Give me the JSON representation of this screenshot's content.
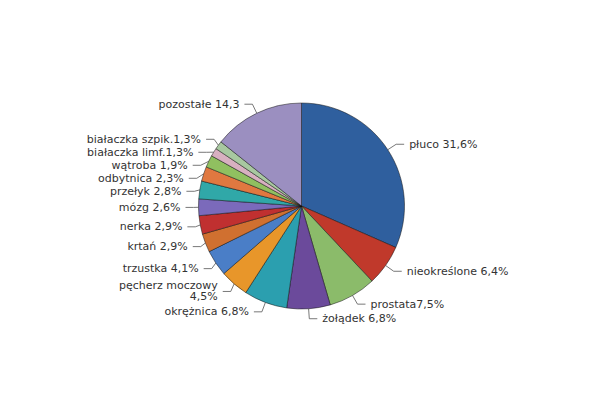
{
  "chart_data": {
    "type": "pie",
    "categories": [
      "płuco 31,6%",
      "nieokreślone 6,4%",
      "prostata7,5%",
      "żołądek 6,8%",
      "okrężnica 6,8%",
      "pęcherz moczowy\n4,5%",
      "trzustka 4,1%",
      "krtań 2,9%",
      "nerka 2,9%",
      "mózg 2,6%",
      "przełyk 2,8%",
      "odbytnica 2,3%",
      "wątroba 1,9%",
      "białaczka limf.1,3%",
      "białaczka szpik.1,3%",
      "pozostałe 14,3"
    ],
    "values": [
      31.6,
      6.4,
      7.5,
      6.8,
      6.8,
      4.5,
      4.1,
      2.9,
      2.9,
      2.6,
      2.8,
      2.3,
      1.9,
      1.3,
      1.3,
      14.3
    ],
    "colors": [
      "#2F5F9E",
      "#C0392B",
      "#8BBB6A",
      "#6B4A9B",
      "#2B9FAF",
      "#E8962A",
      "#4A7EC7",
      "#D07030",
      "#C03030",
      "#7B6ABB",
      "#30A8A8",
      "#E07840",
      "#90C060",
      "#D8B0C0",
      "#A8C8A0",
      "#9B8FC0"
    ]
  }
}
